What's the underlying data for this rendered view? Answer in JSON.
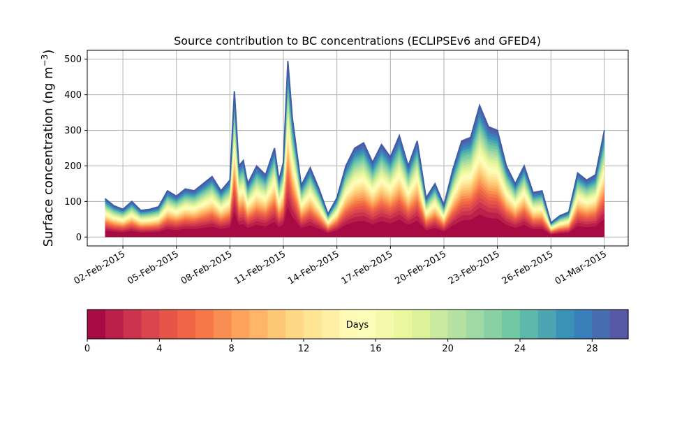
{
  "chart_data": [
    {
      "type": "area",
      "title": "Source contribution to BC concentrations (ECLIPSEv6 and GFED4)",
      "ylabel": "Surface concentration (ng m",
      "ylabel_sup": "−3",
      "ylabel_close": ")",
      "xlabel": "",
      "ylim": [
        -25,
        525
      ],
      "xlim": [
        "2015-01-31 00:00",
        "2015-03-02 08:00"
      ],
      "grid": true,
      "stacked": true,
      "yticks": [
        0,
        100,
        200,
        300,
        400,
        500
      ],
      "xtick_dates": [
        "2015-02-02",
        "2015-02-05",
        "2015-02-08",
        "2015-02-11",
        "2015-02-14",
        "2015-02-17",
        "2015-02-20",
        "2015-02-23",
        "2015-02-26",
        "2015-03-01"
      ],
      "xtick_labels": [
        "02-Feb-2015",
        "05-Feb-2015",
        "08-Feb-2015",
        "11-Feb-2015",
        "14-Feb-2015",
        "17-Feb-2015",
        "20-Feb-2015",
        "23-Feb-2015",
        "26-Feb-2015",
        "01-Mar-2015"
      ],
      "series_note_colormap": "Spectral",
      "total": {
        "x": [
          "2015-02-01 00:00",
          "2015-02-01 12:00",
          "2015-02-02 00:00",
          "2015-02-02 12:00",
          "2015-02-03 00:00",
          "2015-02-03 12:00",
          "2015-02-04 00:00",
          "2015-02-04 12:00",
          "2015-02-05 00:00",
          "2015-02-05 12:00",
          "2015-02-06 00:00",
          "2015-02-06 12:00",
          "2015-02-07 00:00",
          "2015-02-07 12:00",
          "2015-02-08 00:00",
          "2015-02-08 06:00",
          "2015-02-08 12:00",
          "2015-02-08 18:00",
          "2015-02-09 00:00",
          "2015-02-09 12:00",
          "2015-02-10 00:00",
          "2015-02-10 12:00",
          "2015-02-10 18:00",
          "2015-02-11 00:00",
          "2015-02-11 06:00",
          "2015-02-11 12:00",
          "2015-02-12 00:00",
          "2015-02-12 12:00",
          "2015-02-13 00:00",
          "2015-02-13 12:00",
          "2015-02-14 00:00",
          "2015-02-14 12:00",
          "2015-02-15 00:00",
          "2015-02-15 12:00",
          "2015-02-16 00:00",
          "2015-02-16 12:00",
          "2015-02-17 00:00",
          "2015-02-17 12:00",
          "2015-02-18 00:00",
          "2015-02-18 12:00",
          "2015-02-19 00:00",
          "2015-02-19 12:00",
          "2015-02-20 00:00",
          "2015-02-20 12:00",
          "2015-02-21 00:00",
          "2015-02-21 12:00",
          "2015-02-22 00:00",
          "2015-02-22 12:00",
          "2015-02-23 00:00",
          "2015-02-23 12:00",
          "2015-02-24 00:00",
          "2015-02-24 12:00",
          "2015-02-25 00:00",
          "2015-02-25 12:00",
          "2015-02-26 00:00",
          "2015-02-26 12:00",
          "2015-02-27 00:00",
          "2015-02-27 12:00",
          "2015-02-28 00:00",
          "2015-02-28 12:00",
          "2015-03-01 00:00"
        ],
        "y": [
          108,
          88,
          78,
          100,
          75,
          78,
          85,
          130,
          115,
          135,
          130,
          150,
          170,
          130,
          160,
          410,
          200,
          215,
          150,
          200,
          175,
          250,
          160,
          210,
          495,
          335,
          145,
          195,
          135,
          65,
          110,
          200,
          250,
          265,
          210,
          260,
          225,
          285,
          200,
          270,
          110,
          150,
          90,
          190,
          270,
          280,
          370,
          310,
          300,
          200,
          150,
          200,
          125,
          130,
          40,
          60,
          70,
          180,
          160,
          175,
          300
        ]
      }
    },
    {
      "type": "colorbar",
      "label": "Days",
      "vmin": 0,
      "vmax": 30,
      "levels": 30,
      "ticks": [
        0,
        4,
        8,
        12,
        16,
        20,
        24,
        28
      ],
      "colors": [
        "#9e0142",
        "#d53e4f",
        "#f46d43",
        "#fdae61",
        "#fee08b",
        "#ffffbf",
        "#e6f598",
        "#abdda4",
        "#66c2a5",
        "#3288bd",
        "#5e4fa2"
      ]
    }
  ]
}
